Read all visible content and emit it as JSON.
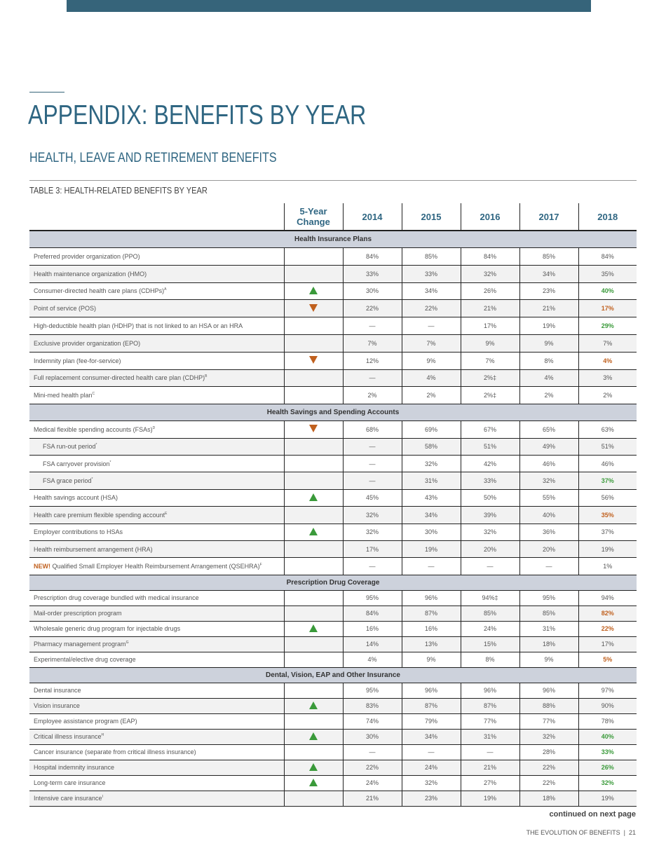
{
  "header": {
    "title": "APPENDIX: BENEFITS BY YEAR",
    "subtitle": "HEALTH, LEAVE AND RETIREMENT BENEFITS",
    "table_title": "TABLE 3: HEALTH-RELATED BENEFITS BY YEAR"
  },
  "columns": {
    "change": "5-Year Change",
    "years": [
      "2014",
      "2015",
      "2016",
      "2017",
      "2018"
    ]
  },
  "colors": {
    "accent": "#2f6682",
    "bar": "#36647a",
    "up": "#3a9a3a",
    "down": "#c0601e",
    "section_bg": "#cdd2dc"
  },
  "sections": [
    {
      "title": "Health Insurance Plans",
      "rows": [
        {
          "label": "Preferred provider organization (PPO)",
          "change": "",
          "values": [
            "84%",
            "85%",
            "84%",
            "85%",
            "84%"
          ]
        },
        {
          "label": "Health maintenance organization (HMO)",
          "change": "",
          "values": [
            "33%",
            "33%",
            "32%",
            "34%",
            "35%"
          ]
        },
        {
          "label": "Consumer-directed health care plans (CDHPs)",
          "sup": "A",
          "change": "up",
          "values": [
            "30%",
            "34%",
            "26%",
            "23%",
            "40%"
          ],
          "hl": "green"
        },
        {
          "label": "Point of service (POS)",
          "change": "down",
          "values": [
            "22%",
            "22%",
            "21%",
            "21%",
            "17%"
          ],
          "hl": "orange"
        },
        {
          "label": "High-deductible health plan (HDHP) that is not linked to an HSA or an HRA",
          "change": "",
          "values": [
            "—",
            "—",
            "17%",
            "19%",
            "29%"
          ],
          "hl": "green"
        },
        {
          "label": "Exclusive provider organization (EPO)",
          "change": "",
          "values": [
            "7%",
            "7%",
            "9%",
            "9%",
            "7%"
          ]
        },
        {
          "label": "Indemnity plan (fee-for-service)",
          "change": "down",
          "values": [
            "12%",
            "9%",
            "7%",
            "8%",
            "4%"
          ],
          "hl": "orange"
        },
        {
          "label": "Full replacement consumer-directed health care plan (CDHP)",
          "sup": "B",
          "change": "",
          "values": [
            "—",
            "4%",
            "2%‡",
            "4%",
            "3%"
          ]
        },
        {
          "label": "Mini-med health plan",
          "sup": "C",
          "change": "",
          "values": [
            "2%",
            "2%",
            "2%‡",
            "2%",
            "2%"
          ]
        }
      ]
    },
    {
      "title": "Health Savings and Spending Accounts",
      "rows": [
        {
          "label": "Medical flexible spending accounts (FSAs)",
          "sup": "D",
          "change": "down",
          "values": [
            "68%",
            "69%",
            "67%",
            "65%",
            "63%"
          ]
        },
        {
          "label": "FSA run-out period",
          "sup": "*",
          "indent": true,
          "change": "",
          "values": [
            "—",
            "58%",
            "51%",
            "49%",
            "51%"
          ]
        },
        {
          "label": "FSA carryover provision",
          "sup": "*",
          "indent": true,
          "change": "",
          "values": [
            "—",
            "32%",
            "42%",
            "46%",
            "46%"
          ]
        },
        {
          "label": "FSA grace period",
          "sup": "*",
          "indent": true,
          "change": "",
          "values": [
            "—",
            "31%",
            "33%",
            "32%",
            "37%"
          ],
          "hl": "green"
        },
        {
          "label": "Health savings account (HSA)",
          "change": "up",
          "values": [
            "45%",
            "43%",
            "50%",
            "55%",
            "56%"
          ]
        },
        {
          "label": "Health care premium flexible spending account",
          "sup": "E",
          "change": "",
          "values": [
            "32%",
            "34%",
            "39%",
            "40%",
            "35%"
          ],
          "hl": "orange"
        },
        {
          "label": "Employer contributions to HSAs",
          "change": "up",
          "values": [
            "32%",
            "30%",
            "32%",
            "36%",
            "37%"
          ]
        },
        {
          "label": "Health reimbursement arrangement (HRA)",
          "change": "",
          "values": [
            "17%",
            "19%",
            "20%",
            "20%",
            "19%"
          ]
        },
        {
          "new": "NEW!",
          "label": "Qualified Small Employer Health Reimbursement Arrangement (QSEHRA)",
          "sup": "F",
          "change": "",
          "values": [
            "—",
            "—",
            "—",
            "—",
            "1%"
          ]
        }
      ]
    },
    {
      "title": "Prescription Drug Coverage",
      "small": true,
      "rows": [
        {
          "label": "Prescription drug coverage bundled with medical insurance",
          "change": "",
          "values": [
            "95%",
            "96%",
            "94%‡",
            "95%",
            "94%"
          ]
        },
        {
          "label": "Mail-order prescription program",
          "change": "",
          "values": [
            "84%",
            "87%",
            "85%",
            "85%",
            "82%"
          ],
          "hl": "orange"
        },
        {
          "label": "Wholesale generic drug program for injectable drugs",
          "change": "up",
          "values": [
            "16%",
            "16%",
            "24%",
            "31%",
            "22%"
          ],
          "hl": "orange"
        },
        {
          "label": "Pharmacy management program",
          "sup": "G",
          "change": "",
          "values": [
            "14%",
            "13%",
            "15%",
            "18%",
            "17%"
          ]
        },
        {
          "label": "Experimental/elective drug coverage",
          "change": "",
          "values": [
            "4%",
            "9%",
            "8%",
            "9%",
            "5%"
          ],
          "hl": "orange"
        }
      ]
    },
    {
      "title": "Dental, Vision, EAP and Other Insurance",
      "small": true,
      "rows": [
        {
          "label": "Dental insurance",
          "change": "",
          "values": [
            "95%",
            "96%",
            "96%",
            "96%",
            "97%"
          ]
        },
        {
          "label": "Vision insurance",
          "change": "up",
          "values": [
            "83%",
            "87%",
            "87%",
            "88%",
            "90%"
          ]
        },
        {
          "label": "Employee assistance program (EAP)",
          "change": "",
          "values": [
            "74%",
            "79%",
            "77%",
            "77%",
            "78%"
          ]
        },
        {
          "label": "Critical illness insurance",
          "sup": "H",
          "change": "up",
          "values": [
            "30%",
            "34%",
            "31%",
            "32%",
            "40%"
          ],
          "hl": "green"
        },
        {
          "label": "Cancer insurance (separate from critical illness insurance)",
          "change": "",
          "values": [
            "—",
            "—",
            "—",
            "28%",
            "33%"
          ],
          "hl": "green"
        },
        {
          "label": "Hospital indemnity insurance",
          "change": "up",
          "values": [
            "22%",
            "24%",
            "21%",
            "22%",
            "26%"
          ],
          "hl": "green"
        },
        {
          "label": "Long-term care insurance",
          "change": "up",
          "values": [
            "24%",
            "32%",
            "27%",
            "22%",
            "32%"
          ],
          "hl": "green"
        },
        {
          "label": "Intensive care insurance",
          "sup": "I",
          "change": "",
          "values": [
            "21%",
            "23%",
            "19%",
            "18%",
            "19%"
          ]
        }
      ]
    }
  ],
  "footer": {
    "continued": "continued on next page",
    "publication": "THE EVOLUTION OF BENEFITS  |  21"
  }
}
